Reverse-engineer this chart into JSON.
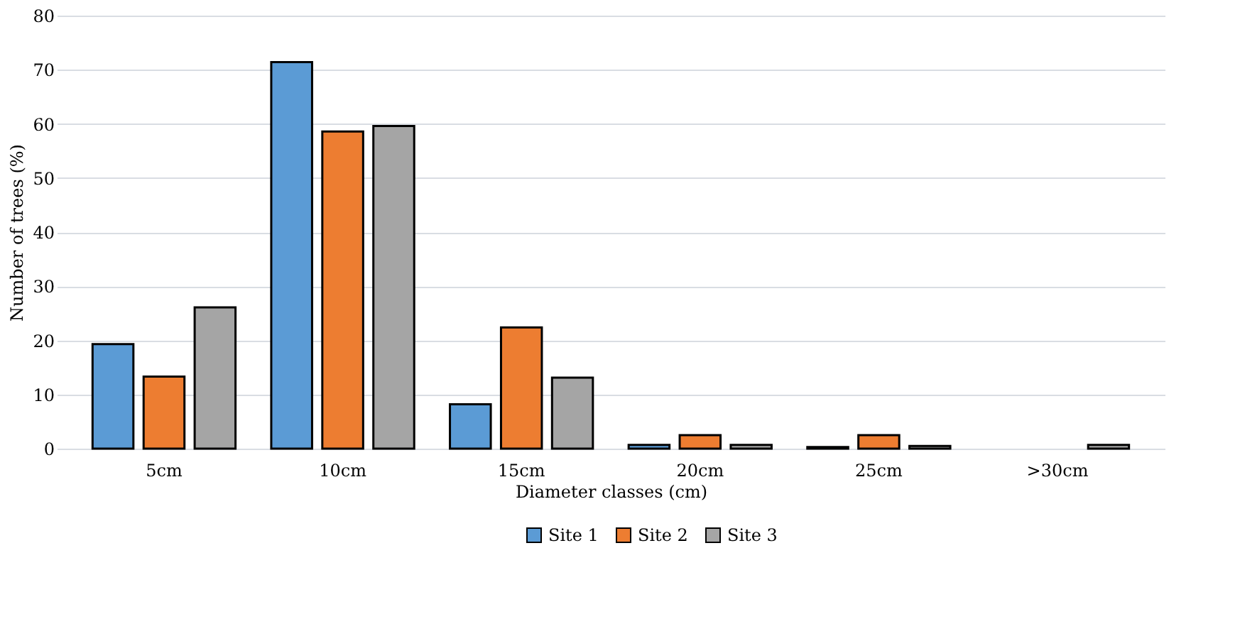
{
  "chart_data": {
    "type": "bar",
    "xlabel": "Diameter classes (cm)",
    "ylabel": "Number of trees (%)",
    "categories": [
      "5cm",
      "10cm",
      "15cm",
      "20cm",
      "25cm",
      ">30cm"
    ],
    "series": [
      {
        "name": "Site 1",
        "color": "#5b9bd5",
        "values": [
          19.3,
          71.4,
          8.2,
          0.7,
          0.3,
          null
        ]
      },
      {
        "name": "Site 2",
        "color": "#ed7d31",
        "values": [
          13.3,
          58.6,
          22.4,
          2.5,
          2.5,
          null
        ]
      },
      {
        "name": "Site 3",
        "color": "#a5a5a5",
        "values": [
          26.1,
          59.6,
          13.1,
          0.7,
          0.5,
          0.7
        ]
      }
    ],
    "ylim": [
      0,
      80
    ],
    "yticks": [
      0,
      10,
      20,
      30,
      40,
      50,
      60,
      70,
      80
    ],
    "grid": "y",
    "legend": "bottom"
  }
}
